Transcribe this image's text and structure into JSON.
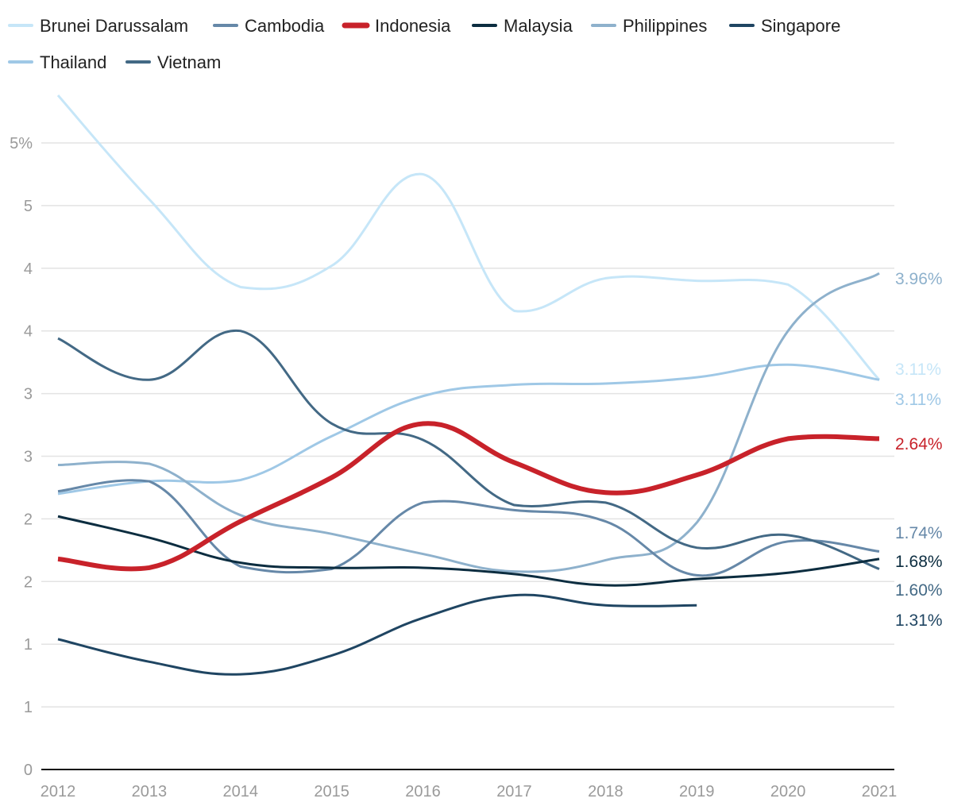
{
  "chart_data": {
    "type": "line",
    "x": [
      "2012",
      "2013",
      "2014",
      "2015",
      "2016",
      "2017",
      "2018",
      "2019",
      "2020",
      "2021"
    ],
    "y_ticks": [
      {
        "value": 0,
        "label": "0"
      },
      {
        "value": 0.5,
        "label": "1"
      },
      {
        "value": 1.0,
        "label": "1"
      },
      {
        "value": 1.5,
        "label": "2"
      },
      {
        "value": 2.0,
        "label": "2"
      },
      {
        "value": 2.5,
        "label": "3"
      },
      {
        "value": 3.0,
        "label": "3"
      },
      {
        "value": 3.5,
        "label": "4"
      },
      {
        "value": 4.0,
        "label": "4"
      },
      {
        "value": 4.5,
        "label": "5"
      },
      {
        "value": 5.0,
        "label": "5%"
      }
    ],
    "ylim": [
      0,
      5.4
    ],
    "grid": true,
    "legend_position": "top",
    "series": [
      {
        "name": "Brunei Darussalam",
        "color": "#c6e6f8",
        "width": 3,
        "values": [
          5.38,
          4.55,
          3.85,
          4.02,
          4.75,
          3.66,
          3.92,
          3.9,
          3.87,
          3.11
        ],
        "end_label": "3.11%"
      },
      {
        "name": "Cambodia",
        "color": "#6688a8",
        "width": 3,
        "values": [
          2.22,
          2.3,
          1.62,
          1.6,
          2.13,
          2.07,
          1.98,
          1.55,
          1.82,
          1.74
        ],
        "end_label": "1.74%"
      },
      {
        "name": "Indonesia",
        "color": "#c8222a",
        "width": 6,
        "values": [
          1.68,
          1.61,
          1.98,
          2.33,
          2.76,
          2.45,
          2.21,
          2.35,
          2.64,
          2.64
        ],
        "end_label": "2.64%"
      },
      {
        "name": "Malaysia",
        "color": "#0c2d40",
        "width": 3,
        "values": [
          2.02,
          1.85,
          1.65,
          1.61,
          1.61,
          1.56,
          1.47,
          1.52,
          1.57,
          1.68
        ],
        "end_label": "1.68%"
      },
      {
        "name": "Philippines",
        "color": "#8eb1cc",
        "width": 3,
        "values": [
          2.43,
          2.44,
          2.03,
          1.88,
          1.72,
          1.58,
          1.67,
          1.97,
          3.5,
          3.96
        ],
        "end_label": "3.96%"
      },
      {
        "name": "Singapore",
        "color": "#1f4562",
        "width": 3,
        "values": [
          1.04,
          0.86,
          0.76,
          0.91,
          1.21,
          1.39,
          1.31,
          1.31,
          null,
          null
        ],
        "end_label": "1.31%"
      },
      {
        "name": "Thailand",
        "color": "#9fc8e6",
        "width": 3,
        "values": [
          2.2,
          2.3,
          2.31,
          2.66,
          2.98,
          3.07,
          3.08,
          3.13,
          3.23,
          3.11
        ],
        "end_label": "3.11%"
      },
      {
        "name": "Vietnam",
        "color": "#436985",
        "width": 3,
        "values": [
          3.44,
          3.11,
          3.5,
          2.76,
          2.63,
          2.11,
          2.13,
          1.77,
          1.87,
          1.6
        ],
        "end_label": "1.60%"
      }
    ]
  }
}
